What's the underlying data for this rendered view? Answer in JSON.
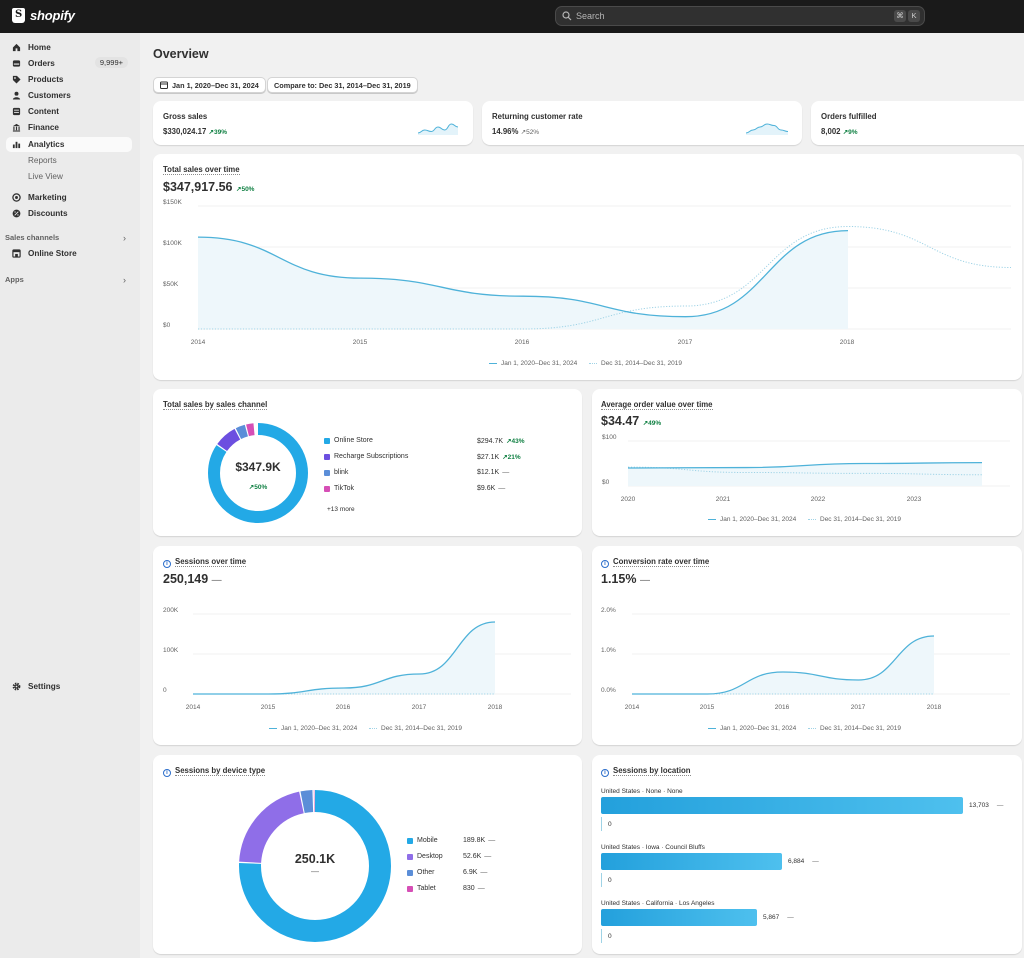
{
  "topbar": {
    "brand": "shopify",
    "search_placeholder": "Search",
    "shortcut_1": "⌘",
    "shortcut_2": "K"
  },
  "sidebar": {
    "items": [
      {
        "label": "Home",
        "icon": "home-icon"
      },
      {
        "label": "Orders",
        "icon": "orders-icon",
        "badge": "9,999+"
      },
      {
        "label": "Products",
        "icon": "tag-icon"
      },
      {
        "label": "Customers",
        "icon": "person-icon"
      },
      {
        "label": "Content",
        "icon": "content-icon"
      },
      {
        "label": "Finance",
        "icon": "bank-icon"
      },
      {
        "label": "Analytics",
        "icon": "chart-bar-icon",
        "active": true
      },
      {
        "label": "Reports",
        "sub": true
      },
      {
        "label": "Live View",
        "sub": true
      },
      {
        "label": "Marketing",
        "icon": "target-icon"
      },
      {
        "label": "Discounts",
        "icon": "discount-icon"
      }
    ],
    "sales_channels_heading": "Sales channels",
    "online_store": "Online Store",
    "apps_heading": "Apps",
    "settings": "Settings"
  },
  "page": {
    "title": "Overview",
    "date_range": "Jan 1, 2020–Dec 31, 2024",
    "compare": "Compare to: Dec 31, 2014–Dec 31, 2019"
  },
  "kpis": [
    {
      "label": "Gross sales",
      "value": "$330,024.17",
      "change": "39%",
      "trend": "up",
      "spark": [
        5,
        6,
        5.5,
        7,
        6,
        8,
        7
      ]
    },
    {
      "label": "Returning customer rate",
      "value": "14.96%",
      "change": "52%",
      "trend": "neutral",
      "spark": [
        4,
        5,
        6,
        7,
        6.5,
        5,
        4.5
      ]
    },
    {
      "label": "Orders fulfilled",
      "value": "8,002",
      "change": "9%",
      "trend": "up"
    }
  ],
  "total_sales": {
    "title": "Total sales over time",
    "value": "$347,917.56",
    "change": "50%",
    "y_ticks": [
      "$150K",
      "$100K",
      "$50K",
      "$0"
    ],
    "x_ticks": [
      "2014",
      "2015",
      "2016",
      "2017",
      "2018"
    ],
    "legend_current": "Jan 1, 2020–Dec 31, 2024",
    "legend_compare": "Dec 31, 2014–Dec 31, 2019"
  },
  "by_channel": {
    "title": "Total sales by sales channel",
    "total": "$347.9K",
    "change": "50%",
    "rows": [
      {
        "name": "Online Store",
        "value": "$294.7K",
        "change": "43%",
        "color": "#23a9e6",
        "share": 84.7
      },
      {
        "name": "Recharge Subscriptions",
        "value": "$27.1K",
        "change": "21%",
        "color": "#6c4fe0",
        "share": 7.8
      },
      {
        "name": "blink",
        "value": "$12.1K",
        "change": "—",
        "color": "#5b8ed8",
        "share": 3.5
      },
      {
        "name": "TikTok",
        "value": "$9.6K",
        "change": "—",
        "color": "#d64fb6",
        "share": 2.8
      }
    ],
    "more": "+13 more"
  },
  "aov": {
    "title": "Average order value over time",
    "value": "$34.47",
    "change": "49%",
    "y_ticks": [
      "$100",
      "$0"
    ],
    "x_ticks": [
      "2020",
      "2021",
      "2022",
      "2023"
    ],
    "legend_current": "Jan 1, 2020–Dec 31, 2024",
    "legend_compare": "Dec 31, 2014–Dec 31, 2019"
  },
  "sessions": {
    "title": "Sessions over time",
    "value": "250,149",
    "change": "—",
    "y_ticks": [
      "200K",
      "100K",
      "0"
    ],
    "x_ticks": [
      "2014",
      "2015",
      "2016",
      "2017",
      "2018"
    ],
    "legend_current": "Jan 1, 2020–Dec 31, 2024",
    "legend_compare": "Dec 31, 2014–Dec 31, 2019"
  },
  "conversion": {
    "title": "Conversion rate over time",
    "value": "1.15%",
    "change": "—",
    "y_ticks": [
      "2.0%",
      "1.0%",
      "0.0%"
    ],
    "x_ticks": [
      "2014",
      "2015",
      "2016",
      "2017",
      "2018"
    ],
    "legend_current": "Jan 1, 2020–Dec 31, 2024",
    "legend_compare": "Dec 31, 2014–Dec 31, 2019"
  },
  "device": {
    "title": "Sessions by device type",
    "total": "250.1K",
    "change": "—",
    "rows": [
      {
        "name": "Mobile",
        "value": "189.8K",
        "change": "—",
        "color": "#23a9e6",
        "share": 75.9
      },
      {
        "name": "Desktop",
        "value": "52.6K",
        "change": "—",
        "color": "#8f6ee8",
        "share": 21.0
      },
      {
        "name": "Other",
        "value": "6.9K",
        "change": "—",
        "color": "#5b8ed8",
        "share": 2.8
      },
      {
        "name": "Tablet",
        "value": "830",
        "change": "—",
        "color": "#d64fb6",
        "share": 0.3
      }
    ]
  },
  "location": {
    "title": "Sessions by location",
    "rows": [
      {
        "name": "United States · None · None",
        "value": "13,703",
        "change": "—",
        "compare": "0",
        "share": 1.0
      },
      {
        "name": "United States · Iowa · Council Bluffs",
        "value": "6,884",
        "change": "—",
        "compare": "0",
        "share": 0.5
      },
      {
        "name": "United States · California · Los Angeles",
        "value": "5,867",
        "change": "—",
        "compare": "0",
        "share": 0.43
      }
    ]
  },
  "chart_data": [
    {
      "type": "line",
      "title": "Total sales over time",
      "x": [
        "2014",
        "2015",
        "2016",
        "2017",
        "2018"
      ],
      "ylim": [
        0,
        150000
      ],
      "series": [
        {
          "name": "Jan 1, 2020–Dec 31, 2024",
          "values": [
            112000,
            62000,
            40000,
            15000,
            120000
          ]
        },
        {
          "name": "Dec 31, 2014–Dec 31, 2019",
          "values": [
            0,
            0,
            0,
            28000,
            125000
          ]
        }
      ]
    },
    {
      "type": "line",
      "title": "Average order value over time",
      "x": [
        "2020",
        "2021",
        "2022",
        "2023"
      ],
      "ylim": [
        0,
        100
      ],
      "series": [
        {
          "name": "Jan 1, 2020–Dec 31, 2024",
          "values": [
            40,
            41,
            50,
            52
          ]
        },
        {
          "name": "Dec 31, 2014–Dec 31, 2019",
          "values": [
            42,
            30,
            28,
            25
          ]
        }
      ]
    },
    {
      "type": "line",
      "title": "Sessions over time",
      "x": [
        "2014",
        "2015",
        "2016",
        "2017",
        "2018"
      ],
      "ylim": [
        0,
        200000
      ],
      "series": [
        {
          "name": "Jan 1, 2020–Dec 31, 2024",
          "values": [
            0,
            0,
            15000,
            50000,
            180000
          ]
        },
        {
          "name": "Dec 31, 2014–Dec 31, 2019",
          "values": [
            0,
            0,
            0,
            0,
            0
          ]
        }
      ]
    },
    {
      "type": "line",
      "title": "Conversion rate over time",
      "x": [
        "2014",
        "2015",
        "2016",
        "2017",
        "2018"
      ],
      "ylim": [
        0,
        2.0
      ],
      "series": [
        {
          "name": "Jan 1, 2020–Dec 31, 2024",
          "values": [
            0,
            0,
            0.55,
            0.35,
            1.45
          ]
        },
        {
          "name": "Dec 31, 2014–Dec 31, 2019",
          "values": [
            0,
            0,
            0,
            0,
            0
          ]
        }
      ]
    }
  ]
}
